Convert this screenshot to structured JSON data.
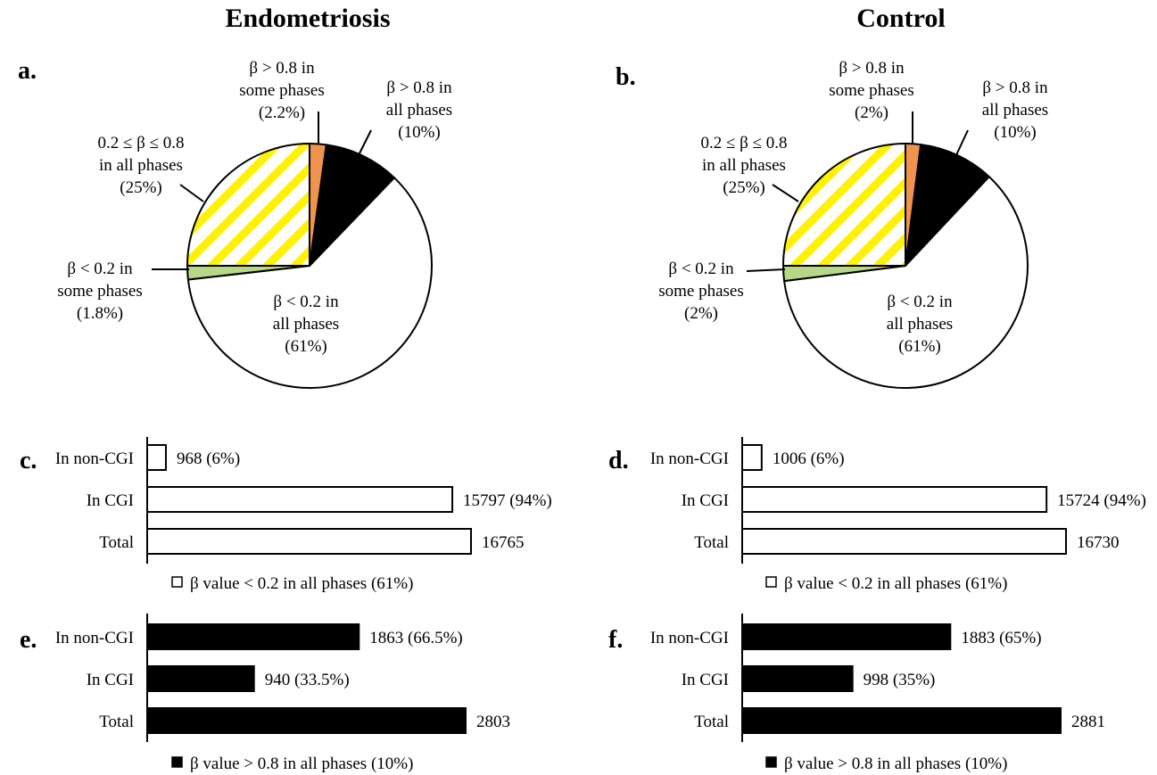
{
  "headings": {
    "left": "Endometriosis",
    "right": "Control"
  },
  "colors": {
    "orange": "#F0934E",
    "black": "#000000",
    "white": "#FFFFFF",
    "green": "#B5D787",
    "yellow": "#FFF200",
    "stroke": "#000000"
  },
  "chart_data": [
    {
      "panel": "a.",
      "type": "pie",
      "slices": [
        {
          "label": [
            "β > 0.8 in",
            "some phases",
            "(2.2%)"
          ],
          "value": 2.2,
          "fill": "orange"
        },
        {
          "label": [
            "β > 0.8 in",
            "all phases",
            "(10%)"
          ],
          "value": 10,
          "fill": "black"
        },
        {
          "label": [
            "β < 0.2 in",
            "all phases",
            "(61%)"
          ],
          "value": 61,
          "fill": "white"
        },
        {
          "label": [
            "β < 0.2 in",
            "some phases",
            "(1.8%)"
          ],
          "value": 1.8,
          "fill": "green"
        },
        {
          "label": [
            "0.2 ≤ β ≤ 0.8",
            "in all phases",
            "(25%)"
          ],
          "value": 25,
          "fill": "hatch"
        }
      ]
    },
    {
      "panel": "b.",
      "type": "pie",
      "slices": [
        {
          "label": [
            "β > 0.8 in",
            "some phases",
            "(2%)"
          ],
          "value": 2,
          "fill": "orange"
        },
        {
          "label": [
            "β > 0.8 in",
            "all phases",
            "(10%)"
          ],
          "value": 10,
          "fill": "black"
        },
        {
          "label": [
            "β < 0.2 in",
            "all phases",
            "(61%)"
          ],
          "value": 61,
          "fill": "white"
        },
        {
          "label": [
            "β < 0.2 in",
            "some phases",
            "(2%)"
          ],
          "value": 2,
          "fill": "green"
        },
        {
          "label": [
            "0.2 ≤ β ≤ 0.8",
            "in all phases",
            "(25%)"
          ],
          "value": 25,
          "fill": "hatch"
        }
      ]
    },
    {
      "panel": "c.",
      "type": "bar",
      "orientation": "horizontal",
      "categories": [
        "In non-CGI",
        "In CGI",
        "Total"
      ],
      "values": [
        968,
        15797,
        16765
      ],
      "data_labels": [
        "968 (6%)",
        "15797 (94%)",
        "16765"
      ],
      "fill": "white",
      "legend": "β value < 0.2 in all phases (61%)",
      "xlim": [
        0,
        16765
      ]
    },
    {
      "panel": "d.",
      "type": "bar",
      "orientation": "horizontal",
      "categories": [
        "In non-CGI",
        "In CGI",
        "Total"
      ],
      "values": [
        1006,
        15724,
        16730
      ],
      "data_labels": [
        "1006 (6%)",
        "15724 (94%)",
        "16730"
      ],
      "fill": "white",
      "legend": "β value < 0.2 in all phases (61%)",
      "xlim": [
        0,
        16730
      ]
    },
    {
      "panel": "e.",
      "type": "bar",
      "orientation": "horizontal",
      "categories": [
        "In non-CGI",
        "In CGI",
        "Total"
      ],
      "values": [
        1863,
        940,
        2803
      ],
      "data_labels": [
        "1863 (66.5%)",
        "940 (33.5%)",
        "2803"
      ],
      "fill": "black",
      "legend": "β value > 0.8 in all phases (10%)",
      "xlim": [
        0,
        2803
      ]
    },
    {
      "panel": "f.",
      "type": "bar",
      "orientation": "horizontal",
      "categories": [
        "In non-CGI",
        "In CGI",
        "Total"
      ],
      "values": [
        1883,
        998,
        2881
      ],
      "data_labels": [
        "1883 (65%)",
        "998 (35%)",
        "2881"
      ],
      "fill": "black",
      "legend": "β value > 0.8 in all phases (10%)",
      "xlim": [
        0,
        2881
      ]
    }
  ]
}
